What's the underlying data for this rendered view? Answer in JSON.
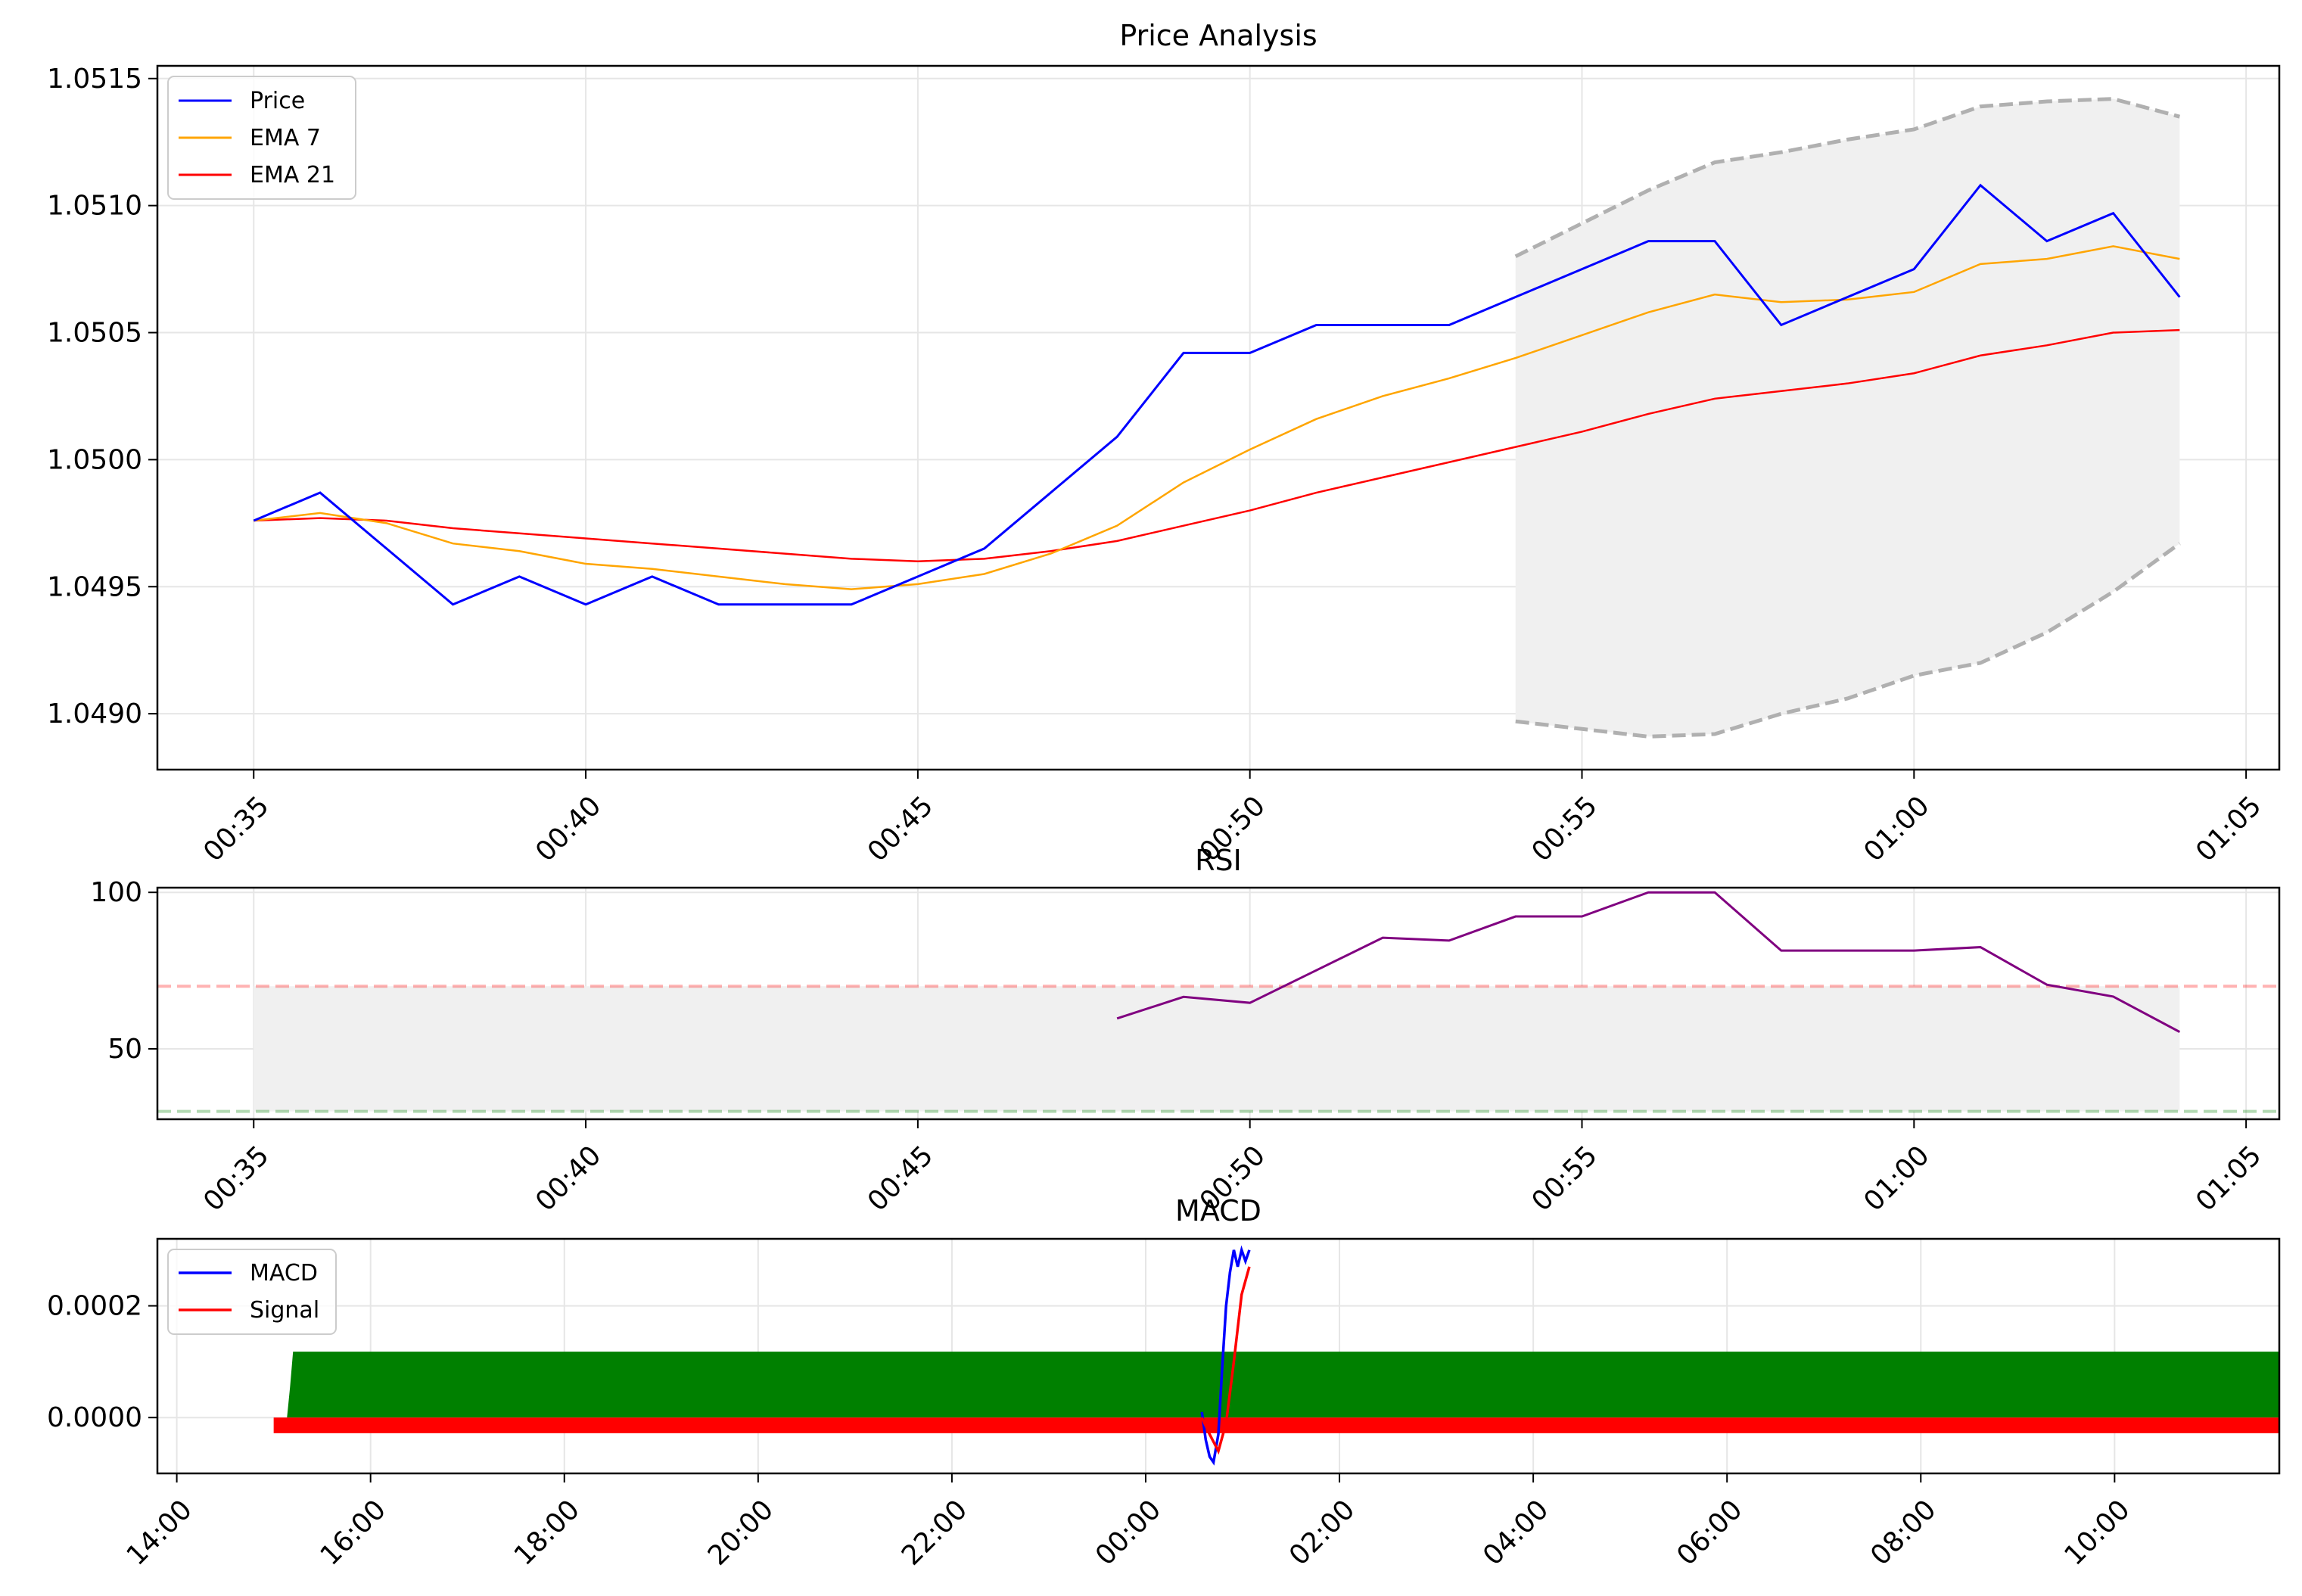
{
  "figure": {
    "price_title": "Price Analysis",
    "rsi_title": "RSI",
    "macd_title": "MACD"
  },
  "chart_data": [
    {
      "type": "line",
      "title": "Price Analysis",
      "x_ticks": [
        "00:35",
        "00:40",
        "00:45",
        "00:50",
        "00:55",
        "01:00",
        "01:05"
      ],
      "y_ticks": [
        "1.0490",
        "1.0495",
        "1.0500",
        "1.0505",
        "1.0510",
        "1.0515"
      ],
      "ylim": [
        1.04878,
        1.05155
      ],
      "xlim_minutes": [
        -1.45,
        30.5
      ],
      "grid": true,
      "legend_position": "top-left",
      "series": [
        {
          "name": "Price",
          "color": "#0000ff",
          "x": [
            0,
            1,
            2,
            3,
            4,
            5,
            6,
            7,
            8,
            9,
            10,
            11,
            12,
            13,
            14,
            15,
            16,
            17,
            18,
            19,
            20,
            21,
            22,
            23,
            24,
            25,
            26,
            27,
            28,
            29
          ],
          "values": [
            1.04976,
            1.04987,
            1.04965,
            1.04943,
            1.04954,
            1.04943,
            1.04954,
            1.04943,
            1.04943,
            1.04943,
            1.04954,
            1.04965,
            1.04987,
            1.05009,
            1.05042,
            1.05042,
            1.05053,
            1.05053,
            1.05053,
            1.05064,
            1.05075,
            1.05086,
            1.05086,
            1.05053,
            1.05064,
            1.05075,
            1.05108,
            1.05086,
            1.05097,
            1.05064
          ]
        },
        {
          "name": "EMA 7",
          "color": "#ffa500",
          "x": [
            0,
            1,
            2,
            3,
            4,
            5,
            6,
            7,
            8,
            9,
            10,
            11,
            12,
            13,
            14,
            15,
            16,
            17,
            18,
            19,
            20,
            21,
            22,
            23,
            24,
            25,
            26,
            27,
            28,
            29
          ],
          "values": [
            1.04976,
            1.04979,
            1.04975,
            1.04967,
            1.04964,
            1.04959,
            1.04957,
            1.04954,
            1.04951,
            1.04949,
            1.04951,
            1.04955,
            1.04963,
            1.04974,
            1.04991,
            1.05004,
            1.05016,
            1.05025,
            1.05032,
            1.0504,
            1.05049,
            1.05058,
            1.05065,
            1.05062,
            1.05063,
            1.05066,
            1.05077,
            1.05079,
            1.05084,
            1.05079
          ]
        },
        {
          "name": "EMA 21",
          "color": "#ff0000",
          "x": [
            0,
            1,
            2,
            3,
            4,
            5,
            6,
            7,
            8,
            9,
            10,
            11,
            12,
            13,
            14,
            15,
            16,
            17,
            18,
            19,
            20,
            21,
            22,
            23,
            24,
            25,
            26,
            27,
            28,
            29
          ],
          "values": [
            1.04976,
            1.04977,
            1.04976,
            1.04973,
            1.04971,
            1.04969,
            1.04967,
            1.04965,
            1.04963,
            1.04961,
            1.0496,
            1.04961,
            1.04964,
            1.04968,
            1.04974,
            1.0498,
            1.04987,
            1.04993,
            1.04999,
            1.05005,
            1.05011,
            1.05018,
            1.05024,
            1.05027,
            1.0503,
            1.05034,
            1.05041,
            1.05045,
            1.0505,
            1.05051
          ]
        }
      ],
      "band": {
        "color": "#f0f0f0",
        "line_color": "#b0b0b0",
        "x": [
          19,
          20,
          21,
          22,
          23,
          24,
          25,
          26,
          27,
          28,
          29
        ],
        "upper": [
          1.0508,
          1.05093,
          1.05106,
          1.05117,
          1.05121,
          1.05126,
          1.0513,
          1.05139,
          1.05141,
          1.05142,
          1.05135
        ],
        "lower": [
          1.04897,
          1.04894,
          1.04891,
          1.04892,
          1.049,
          1.04906,
          1.04915,
          1.0492,
          1.04932,
          1.04948,
          1.04967
        ]
      }
    },
    {
      "type": "line",
      "title": "RSI",
      "x_ticks": [
        "00:35",
        "00:40",
        "00:45",
        "00:50",
        "00:55",
        "01:00",
        "01:05"
      ],
      "y_ticks": [
        "50",
        "100"
      ],
      "ylim": [
        27.5,
        101.5
      ],
      "grid": true,
      "overbought": 70,
      "oversold": 30,
      "shade_range": [
        30,
        70
      ],
      "series": [
        {
          "color": "#800080",
          "x": [
            13,
            14,
            15,
            16,
            17,
            18,
            19,
            20,
            21,
            22,
            23,
            24,
            25,
            26,
            27,
            28,
            29
          ],
          "values": [
            59.7,
            66.6,
            64.7,
            75.1,
            85.5,
            84.6,
            92.3,
            92.3,
            100,
            100,
            81.4,
            81.4,
            81.4,
            82.5,
            70.5,
            66.7,
            55.4
          ]
        }
      ]
    },
    {
      "type": "line",
      "title": "MACD",
      "x_ticks": [
        "14:00",
        "16:00",
        "18:00",
        "20:00",
        "22:00",
        "00:00",
        "02:00",
        "04:00",
        "06:00",
        "08:00",
        "10:00"
      ],
      "y_ticks": [
        "0.0000",
        "0.0002"
      ],
      "ylim": [
        -0.0001,
        0.00032
      ],
      "grid": true,
      "legend_position": "top-left",
      "series": [
        {
          "name": "MACD",
          "color": "#0000ff",
          "x_hours": [
            10.58,
            10.62,
            10.66,
            10.7,
            10.75,
            10.79,
            10.83,
            10.87,
            10.91,
            10.95,
            10.99,
            11.03,
            11.07
          ],
          "values": [
            1e-05,
            -4e-05,
            -7e-05,
            -8e-05,
            -3e-05,
            9e-05,
            0.0002,
            0.00026,
            0.0003,
            0.00027,
            0.0003,
            0.00028,
            0.0003
          ]
        },
        {
          "name": "Signal",
          "color": "#ff0000",
          "x_hours": [
            10.58,
            10.66,
            10.75,
            10.83,
            10.91,
            10.99,
            11.07
          ],
          "values": [
            0.0,
            -3e-05,
            -6e-05,
            -1e-05,
            0.0001,
            0.00022,
            0.00027
          ]
        }
      ],
      "histogram": {
        "positive_color": "#008000",
        "negative_color": "#ff0000",
        "positive_range_hours": [
          1.2,
          22.6
        ],
        "positive_value": 0.000118,
        "negative_range_hours": [
          1.0,
          22.3
        ],
        "negative_value": -2.8e-05
      }
    }
  ]
}
